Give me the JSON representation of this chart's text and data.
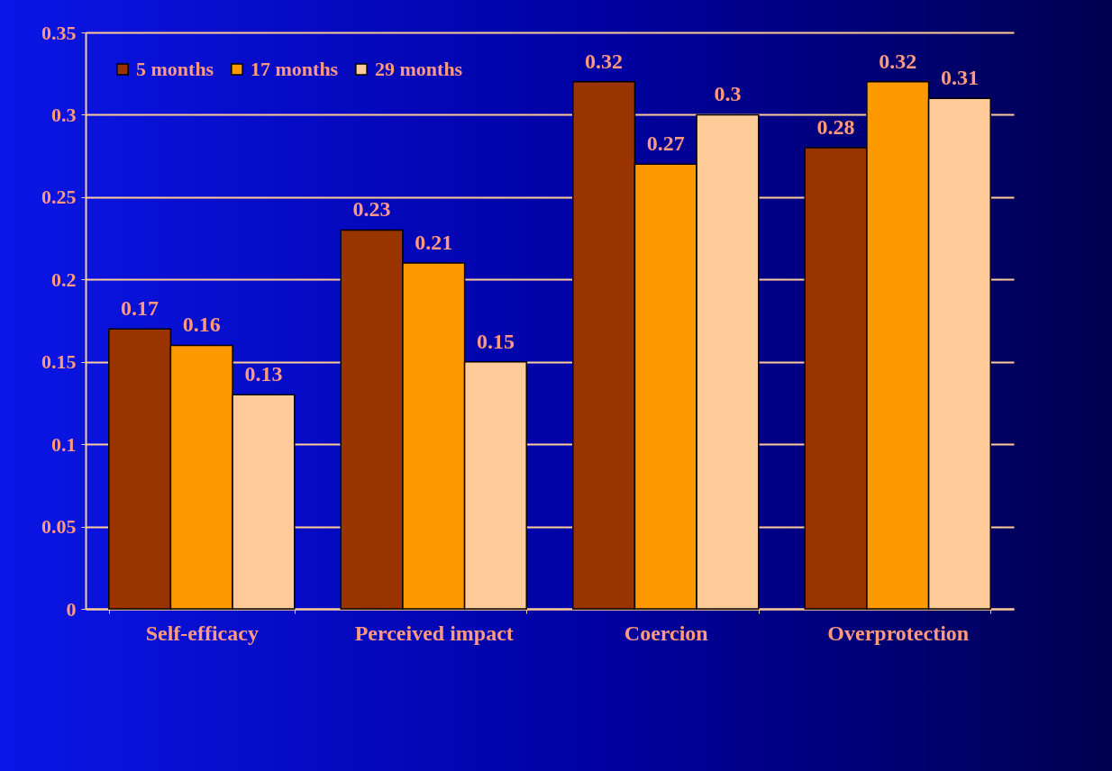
{
  "chart_data": {
    "type": "bar",
    "categories": [
      "Self-efficacy",
      "Perceived impact",
      "Coercion",
      "Overprotection"
    ],
    "series": [
      {
        "name": "5 months",
        "color": "#993300",
        "values": [
          0.17,
          0.23,
          0.32,
          0.28
        ]
      },
      {
        "name": "17 months",
        "color": "#ff9900",
        "values": [
          0.16,
          0.21,
          0.27,
          0.32
        ]
      },
      {
        "name": "29 months",
        "color": "#ffcc99",
        "values": [
          0.13,
          0.15,
          0.3,
          0.31
        ]
      }
    ],
    "ylim": [
      0,
      0.35
    ],
    "yticks": [
      0,
      0.05,
      0.1,
      0.15,
      0.2,
      0.25,
      0.3,
      0.35
    ],
    "grid": "y",
    "legend": "top left",
    "data_labels": true
  }
}
